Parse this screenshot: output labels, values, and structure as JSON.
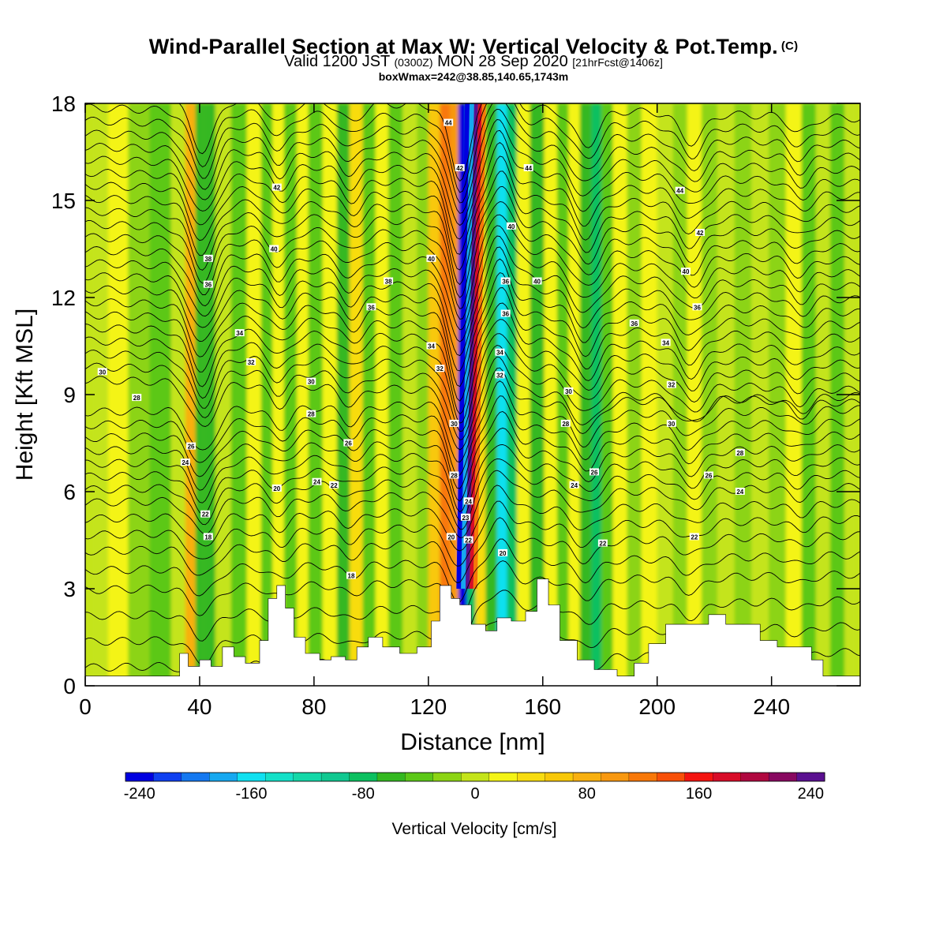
{
  "header": {
    "title": "Wind-Parallel Section at Max W: Vertical Velocity & Pot.Temp.",
    "copyright": "(C)",
    "valid_prefix": "Valid 1200 JST",
    "valid_utc": "(0300Z)",
    "valid_date": "MON 28 Sep 2020",
    "forecast": "[21hrFcst@1406z]",
    "box_info": "boxWmax=242@38.85,140.65,1743m"
  },
  "chart_data": {
    "type": "heatmap",
    "title": "Wind-Parallel Section at Max W: Vertical Velocity & Pot.Temp.",
    "xlabel": "Distance [nm]",
    "ylabel": "Height [Kft MSL]",
    "xlim": [
      0,
      271
    ],
    "ylim": [
      0,
      18
    ],
    "x_ticks": [
      "0",
      "40",
      "80",
      "120",
      "160",
      "200",
      "240"
    ],
    "y_ticks": [
      "0",
      "3",
      "6",
      "9",
      "12",
      "15",
      "18"
    ],
    "colorbar": {
      "label": "Vertical Velocity [cm/s]",
      "ticks": [
        "-240",
        "-160",
        "-80",
        "0",
        "80",
        "160",
        "240"
      ],
      "levels": [
        -240,
        -220,
        -200,
        -180,
        -160,
        -140,
        -120,
        -100,
        -80,
        -60,
        -40,
        -20,
        0,
        20,
        40,
        60,
        80,
        100,
        120,
        140,
        160,
        180,
        200,
        220,
        240
      ],
      "colors": [
        "#0000e0",
        "#0f40f0",
        "#1478f0",
        "#16a8f0",
        "#10e0f0",
        "#14e0c8",
        "#14d8a8",
        "#10c890",
        "#0cc060",
        "#34b820",
        "#5cc818",
        "#8cd414",
        "#c4e41a",
        "#f4f416",
        "#f8dc10",
        "#f8c808",
        "#f8b010",
        "#f89810",
        "#f87808",
        "#f85008",
        "#f41410",
        "#d80c28",
        "#b00840",
        "#880860",
        "#5a1090"
      ]
    },
    "vertical_velocity_columns": [
      {
        "x": 4,
        "w": 5
      },
      {
        "x": 12,
        "w": 22
      },
      {
        "x": 18,
        "w": -12
      },
      {
        "x": 27,
        "w": -22
      },
      {
        "x": 33,
        "w": 14
      },
      {
        "x": 37,
        "w": 95
      },
      {
        "x": 40,
        "w": -48
      },
      {
        "x": 43,
        "w": -58
      },
      {
        "x": 48,
        "w": 18
      },
      {
        "x": 54,
        "w": -28
      },
      {
        "x": 59,
        "w": 22
      },
      {
        "x": 64,
        "w": -40
      },
      {
        "x": 67,
        "w": 34
      },
      {
        "x": 72,
        "w": -24
      },
      {
        "x": 76,
        "w": 26
      },
      {
        "x": 80,
        "w": -36
      },
      {
        "x": 86,
        "w": 30
      },
      {
        "x": 90,
        "w": -46
      },
      {
        "x": 95,
        "w": 52
      },
      {
        "x": 99,
        "w": -30
      },
      {
        "x": 104,
        "w": 24
      },
      {
        "x": 108,
        "w": -26
      },
      {
        "x": 114,
        "w": 16
      },
      {
        "x": 118,
        "w": -20
      },
      {
        "x": 122,
        "w": 70
      },
      {
        "x": 126,
        "w": 135
      },
      {
        "x": 129,
        "w": 115
      },
      {
        "x": 132,
        "w": -230
      },
      {
        "x": 135,
        "w": -75
      },
      {
        "x": 138,
        "w": 40
      },
      {
        "x": 142,
        "w": -50
      },
      {
        "x": 146,
        "w": -150
      },
      {
        "x": 149,
        "w": -72
      },
      {
        "x": 153,
        "w": 22
      },
      {
        "x": 158,
        "w": -52
      },
      {
        "x": 163,
        "w": 34
      },
      {
        "x": 167,
        "w": -34
      },
      {
        "x": 171,
        "w": 22
      },
      {
        "x": 175,
        "w": -44
      },
      {
        "x": 179,
        "w": -70
      },
      {
        "x": 182,
        "w": -34
      },
      {
        "x": 187,
        "w": 20
      },
      {
        "x": 192,
        "w": -18
      },
      {
        "x": 197,
        "w": 24
      },
      {
        "x": 203,
        "w": 16
      },
      {
        "x": 208,
        "w": -20
      },
      {
        "x": 213,
        "w": 26
      },
      {
        "x": 218,
        "w": -18
      },
      {
        "x": 224,
        "w": 10
      },
      {
        "x": 230,
        "w": -16
      },
      {
        "x": 236,
        "w": 18
      },
      {
        "x": 242,
        "w": -14
      },
      {
        "x": 248,
        "w": 22
      },
      {
        "x": 253,
        "w": -28
      },
      {
        "x": 258,
        "w": 18
      },
      {
        "x": 263,
        "w": -24
      },
      {
        "x": 268,
        "w": 12
      }
    ],
    "updraft_core": {
      "x_top": 136,
      "y_top": 18,
      "x_base": 133,
      "y_base": 3,
      "peak_w": 242
    },
    "terrain_kft": [
      {
        "x": 0,
        "h": 0.3
      },
      {
        "x": 30,
        "h": 0.3
      },
      {
        "x": 33,
        "h": 1.0
      },
      {
        "x": 36,
        "h": 0.6
      },
      {
        "x": 40,
        "h": 0.8
      },
      {
        "x": 44,
        "h": 0.6
      },
      {
        "x": 48,
        "h": 1.2
      },
      {
        "x": 52,
        "h": 0.9
      },
      {
        "x": 56,
        "h": 0.7
      },
      {
        "x": 61,
        "h": 1.4
      },
      {
        "x": 64,
        "h": 2.7
      },
      {
        "x": 67,
        "h": 3.1
      },
      {
        "x": 70,
        "h": 2.4
      },
      {
        "x": 73,
        "h": 1.5
      },
      {
        "x": 77,
        "h": 1.0
      },
      {
        "x": 82,
        "h": 0.8
      },
      {
        "x": 86,
        "h": 0.9
      },
      {
        "x": 91,
        "h": 0.8
      },
      {
        "x": 95,
        "h": 1.2
      },
      {
        "x": 99,
        "h": 1.5
      },
      {
        "x": 104,
        "h": 1.2
      },
      {
        "x": 110,
        "h": 1.0
      },
      {
        "x": 116,
        "h": 1.2
      },
      {
        "x": 121,
        "h": 2.0
      },
      {
        "x": 124,
        "h": 3.1
      },
      {
        "x": 128,
        "h": 2.7
      },
      {
        "x": 131,
        "h": 2.5
      },
      {
        "x": 135,
        "h": 1.9
      },
      {
        "x": 140,
        "h": 1.7
      },
      {
        "x": 144,
        "h": 2.1
      },
      {
        "x": 149,
        "h": 2.0
      },
      {
        "x": 154,
        "h": 2.3
      },
      {
        "x": 158,
        "h": 3.3
      },
      {
        "x": 162,
        "h": 2.5
      },
      {
        "x": 166,
        "h": 1.4
      },
      {
        "x": 172,
        "h": 0.8
      },
      {
        "x": 178,
        "h": 0.5
      },
      {
        "x": 186,
        "h": 0.3
      },
      {
        "x": 192,
        "h": 0.7
      },
      {
        "x": 197,
        "h": 1.3
      },
      {
        "x": 203,
        "h": 1.9
      },
      {
        "x": 212,
        "h": 1.9
      },
      {
        "x": 218,
        "h": 2.2
      },
      {
        "x": 224,
        "h": 1.9
      },
      {
        "x": 230,
        "h": 1.9
      },
      {
        "x": 236,
        "h": 1.4
      },
      {
        "x": 242,
        "h": 1.2
      },
      {
        "x": 248,
        "h": 1.2
      },
      {
        "x": 254,
        "h": 0.8
      },
      {
        "x": 258,
        "h": 0.3
      },
      {
        "x": 271,
        "h": 0.3
      }
    ],
    "theta_contours": {
      "base_heights_kft": [
        0.8,
        1.6,
        2.4,
        3.2,
        3.8,
        4.4,
        4.9,
        5.4,
        5.9,
        6.3,
        6.7,
        7.1,
        7.5,
        7.9,
        8.3,
        8.7,
        9.1,
        9.5,
        9.9,
        10.3,
        10.7,
        11.1,
        11.5,
        11.9,
        12.3,
        12.7,
        13.1,
        13.5,
        13.9,
        14.3,
        14.7,
        15.1,
        15.5,
        15.9,
        16.3,
        16.7,
        17.1,
        17.5,
        17.9
      ],
      "wave_troughs": [
        {
          "x": 41,
          "depth": 1.6,
          "width": 6
        },
        {
          "x": 68,
          "depth": 0.7,
          "width": 5
        },
        {
          "x": 93,
          "depth": 0.6,
          "width": 5
        },
        {
          "x": 131,
          "depth": 2.2,
          "width": 5
        },
        {
          "x": 145,
          "depth": -1.2,
          "width": 5
        },
        {
          "x": 175,
          "depth": 1.1,
          "width": 6
        },
        {
          "x": 212,
          "depth": 0.9,
          "width": 6
        },
        {
          "x": 250,
          "depth": 0.5,
          "width": 5
        }
      ]
    },
    "contour_labels": [
      {
        "x": 127,
        "y": 17.4,
        "text": "44"
      },
      {
        "x": 131,
        "y": 16.0,
        "text": "42"
      },
      {
        "x": 155,
        "y": 16.0,
        "text": "44"
      },
      {
        "x": 208,
        "y": 15.3,
        "text": "44"
      },
      {
        "x": 67,
        "y": 15.4,
        "text": "42"
      },
      {
        "x": 149,
        "y": 14.2,
        "text": "40"
      },
      {
        "x": 215,
        "y": 14.0,
        "text": "42"
      },
      {
        "x": 66,
        "y": 13.5,
        "text": "40"
      },
      {
        "x": 43,
        "y": 13.2,
        "text": "38"
      },
      {
        "x": 121,
        "y": 13.2,
        "text": "40"
      },
      {
        "x": 158,
        "y": 12.5,
        "text": "40"
      },
      {
        "x": 210,
        "y": 12.8,
        "text": "40"
      },
      {
        "x": 43,
        "y": 12.4,
        "text": "36"
      },
      {
        "x": 106,
        "y": 12.5,
        "text": "38"
      },
      {
        "x": 147,
        "y": 12.5,
        "text": "36"
      },
      {
        "x": 214,
        "y": 11.7,
        "text": "36"
      },
      {
        "x": 100,
        "y": 11.7,
        "text": "36"
      },
      {
        "x": 147,
        "y": 11.5,
        "text": "36"
      },
      {
        "x": 192,
        "y": 11.2,
        "text": "36"
      },
      {
        "x": 54,
        "y": 10.9,
        "text": "34"
      },
      {
        "x": 121,
        "y": 10.5,
        "text": "34"
      },
      {
        "x": 145,
        "y": 10.3,
        "text": "34"
      },
      {
        "x": 203,
        "y": 10.6,
        "text": "34"
      },
      {
        "x": 58,
        "y": 10.0,
        "text": "32"
      },
      {
        "x": 124,
        "y": 9.8,
        "text": "32"
      },
      {
        "x": 145,
        "y": 9.6,
        "text": "32"
      },
      {
        "x": 6,
        "y": 9.7,
        "text": "30"
      },
      {
        "x": 79,
        "y": 9.4,
        "text": "30"
      },
      {
        "x": 205,
        "y": 9.3,
        "text": "32"
      },
      {
        "x": 18,
        "y": 8.9,
        "text": "28"
      },
      {
        "x": 169,
        "y": 9.1,
        "text": "30"
      },
      {
        "x": 79,
        "y": 8.4,
        "text": "28"
      },
      {
        "x": 129,
        "y": 8.1,
        "text": "30"
      },
      {
        "x": 168,
        "y": 8.1,
        "text": "28"
      },
      {
        "x": 205,
        "y": 8.1,
        "text": "30"
      },
      {
        "x": 37,
        "y": 7.4,
        "text": "26"
      },
      {
        "x": 92,
        "y": 7.5,
        "text": "26"
      },
      {
        "x": 229,
        "y": 7.2,
        "text": "28"
      },
      {
        "x": 35,
        "y": 6.9,
        "text": "24"
      },
      {
        "x": 129,
        "y": 6.5,
        "text": "28"
      },
      {
        "x": 178,
        "y": 6.6,
        "text": "26"
      },
      {
        "x": 218,
        "y": 6.5,
        "text": "26"
      },
      {
        "x": 67,
        "y": 6.1,
        "text": "20"
      },
      {
        "x": 81,
        "y": 6.3,
        "text": "24"
      },
      {
        "x": 87,
        "y": 6.2,
        "text": "22"
      },
      {
        "x": 171,
        "y": 6.2,
        "text": "24"
      },
      {
        "x": 229,
        "y": 6.0,
        "text": "24"
      },
      {
        "x": 134,
        "y": 5.7,
        "text": "24"
      },
      {
        "x": 42,
        "y": 5.3,
        "text": "22"
      },
      {
        "x": 133,
        "y": 5.2,
        "text": "23"
      },
      {
        "x": 128,
        "y": 4.6,
        "text": "20"
      },
      {
        "x": 134,
        "y": 4.5,
        "text": "22"
      },
      {
        "x": 43,
        "y": 4.6,
        "text": "18"
      },
      {
        "x": 213,
        "y": 4.6,
        "text": "22"
      },
      {
        "x": 146,
        "y": 4.1,
        "text": "20"
      },
      {
        "x": 181,
        "y": 4.4,
        "text": "22"
      },
      {
        "x": 93,
        "y": 3.4,
        "text": "18"
      }
    ]
  }
}
